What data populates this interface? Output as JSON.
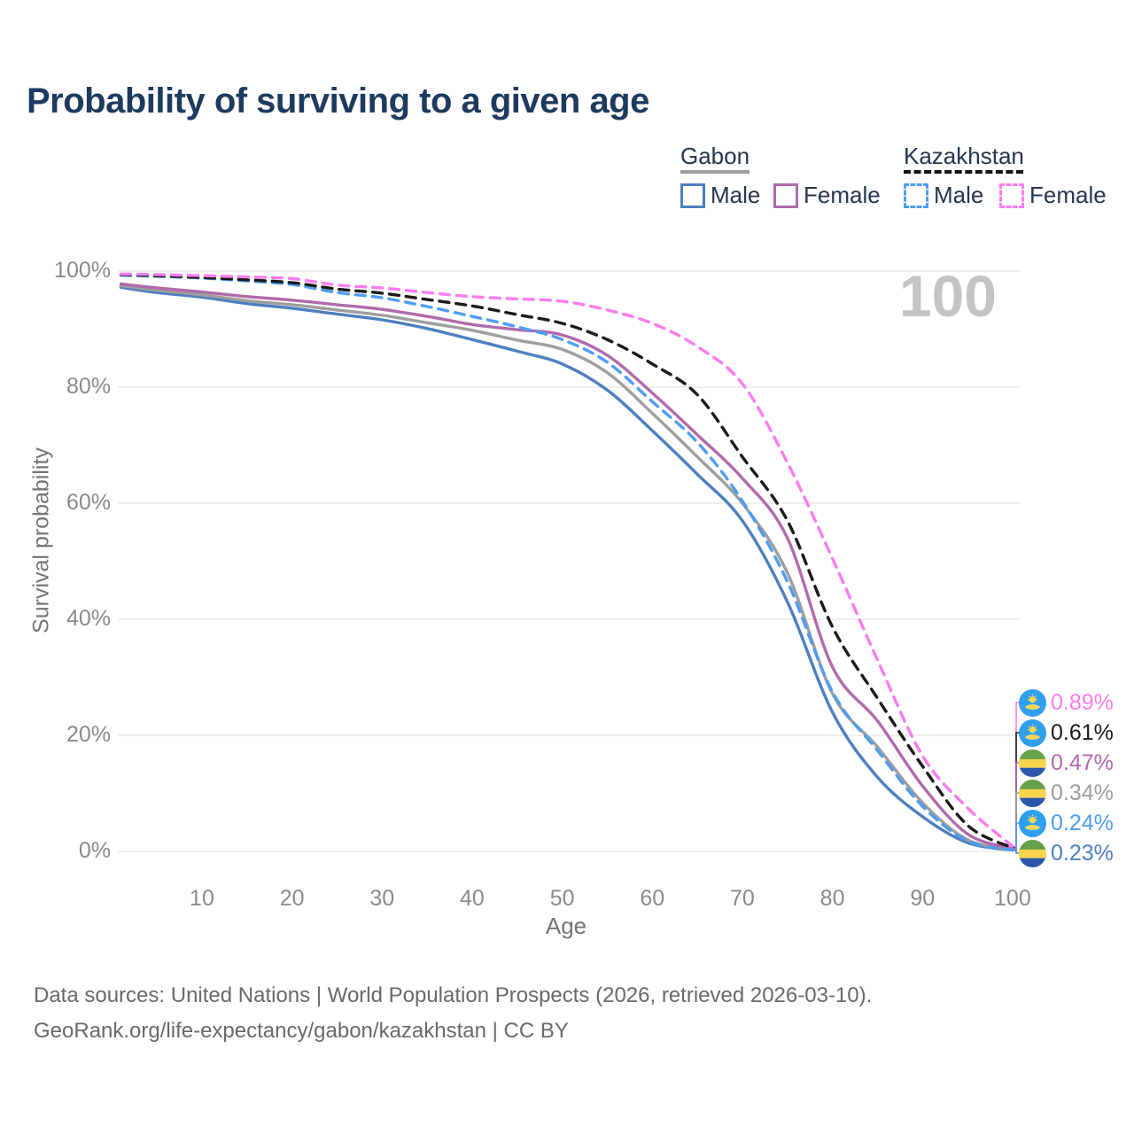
{
  "title": "Probability of surviving to a given age",
  "watermark": "100",
  "legend": {
    "gabon": {
      "label": "Gabon",
      "male": "Male",
      "female": "Female"
    },
    "kazakhstan": {
      "label": "Kazakhstan",
      "male": "Male",
      "female": "Female"
    }
  },
  "chart_data": {
    "type": "line",
    "title": "Probability of surviving to a given age",
    "xlabel": "Age",
    "ylabel": "Survival probability",
    "xlim": [
      0,
      100
    ],
    "ylim": [
      0,
      100
    ],
    "grid": "horizontal",
    "x_ticks": [
      10,
      20,
      30,
      40,
      50,
      60,
      70,
      80,
      90,
      100
    ],
    "y_ticks": [
      {
        "value": 0,
        "label": "0%"
      },
      {
        "value": 20,
        "label": "20%"
      },
      {
        "value": 40,
        "label": "40%"
      },
      {
        "value": 60,
        "label": "60%"
      },
      {
        "value": 80,
        "label": "80%"
      },
      {
        "value": 100,
        "label": "100%"
      }
    ],
    "x": [
      1,
      5,
      10,
      15,
      20,
      25,
      30,
      35,
      40,
      45,
      50,
      55,
      60,
      65,
      70,
      75,
      80,
      85,
      90,
      95,
      100
    ],
    "series": [
      {
        "name": "gabon-male",
        "country": "Gabon",
        "sex": "Male",
        "style": "solid",
        "color": "#4d7fc0",
        "values": [
          97.2,
          96.3,
          95.5,
          94.4,
          93.6,
          92.6,
          91.6,
          90.1,
          88.2,
          86.2,
          84.0,
          79.5,
          72.5,
          65.0,
          57.0,
          43.0,
          24.0,
          12.8,
          6.0,
          1.5,
          0.23
        ]
      },
      {
        "name": "gabon-total",
        "country": "Gabon",
        "sex": "Both",
        "style": "solid",
        "color": "#9e9e9e",
        "values": [
          97.5,
          96.7,
          95.9,
          94.9,
          94.2,
          93.3,
          92.4,
          91.1,
          89.8,
          88.1,
          86.5,
          82.5,
          75.5,
          68.0,
          60.0,
          48.0,
          27.2,
          18.0,
          8.4,
          2.0,
          0.34
        ]
      },
      {
        "name": "gabon-female",
        "country": "Gabon",
        "sex": "Female",
        "style": "solid",
        "color": "#b06aab",
        "values": [
          97.8,
          97.1,
          96.4,
          95.6,
          95.0,
          94.2,
          93.4,
          92.2,
          90.8,
          89.9,
          89.0,
          85.5,
          79.0,
          71.8,
          64.3,
          54.0,
          31.8,
          22.5,
          11.3,
          3.0,
          0.47
        ]
      },
      {
        "name": "kazakhstan-male",
        "country": "Kazakhstan",
        "sex": "Male",
        "style": "dashed",
        "color": "#4f9df3",
        "values": [
          99.3,
          99.1,
          98.8,
          98.3,
          97.7,
          96.3,
          95.4,
          93.9,
          92.2,
          90.4,
          88.2,
          84.3,
          77.5,
          70.5,
          60.4,
          46.5,
          27.5,
          17.4,
          7.8,
          1.8,
          0.24
        ]
      },
      {
        "name": "kazakhstan-total",
        "country": "Kazakhstan",
        "sex": "Both",
        "style": "dashed",
        "color": "#1a1a1a",
        "values": [
          99.4,
          99.2,
          98.9,
          98.5,
          98.0,
          96.9,
          96.2,
          95.1,
          94.0,
          92.5,
          91.0,
          88.2,
          84.0,
          78.7,
          68.0,
          57.0,
          38.7,
          26.4,
          14.7,
          4.5,
          0.61
        ]
      },
      {
        "name": "kazakhstan-female",
        "country": "Kazakhstan",
        "sex": "Female",
        "style": "dashed",
        "color": "#fb7cef",
        "values": [
          99.5,
          99.4,
          99.2,
          99.0,
          98.7,
          97.6,
          97.1,
          96.3,
          95.6,
          95.2,
          94.8,
          93.3,
          91.0,
          87.0,
          80.6,
          67.0,
          50.5,
          33.0,
          16.5,
          7.5,
          0.89
        ]
      }
    ]
  },
  "endpoints": [
    {
      "label": "0.89%",
      "flag": "kazakhstan",
      "series": "kazakhstan-female"
    },
    {
      "label": "0.61%",
      "flag": "kazakhstan",
      "series": "kazakhstan-total"
    },
    {
      "label": "0.47%",
      "flag": "gabon",
      "series": "gabon-female"
    },
    {
      "label": "0.34%",
      "flag": "gabon",
      "series": "gabon-total"
    },
    {
      "label": "0.24%",
      "flag": "kazakhstan",
      "series": "kazakhstan-male"
    },
    {
      "label": "0.23%",
      "flag": "gabon",
      "series": "gabon-male"
    }
  ],
  "colors": {
    "title": "#1e3a5f",
    "legend_text": "#24364e",
    "axis_text": "#8a8a8a",
    "grid": "#eaeaea",
    "watermark": "#c4c4c4",
    "footer_text": "#696969",
    "kazakhstan_flag": {
      "field": "#2f9ff1",
      "emblem": "#fcd75a"
    },
    "gabon_flag": {
      "green": "#67a04a",
      "yellow": "#f9d44d",
      "blue": "#2a57a9"
    }
  },
  "footer": {
    "line1": "Data sources: United Nations | World Population Prospects (2026, retrieved 2026-03-10).",
    "line2": "GeoRank.org/life-expectancy/gabon/kazakhstan | CC BY"
  }
}
